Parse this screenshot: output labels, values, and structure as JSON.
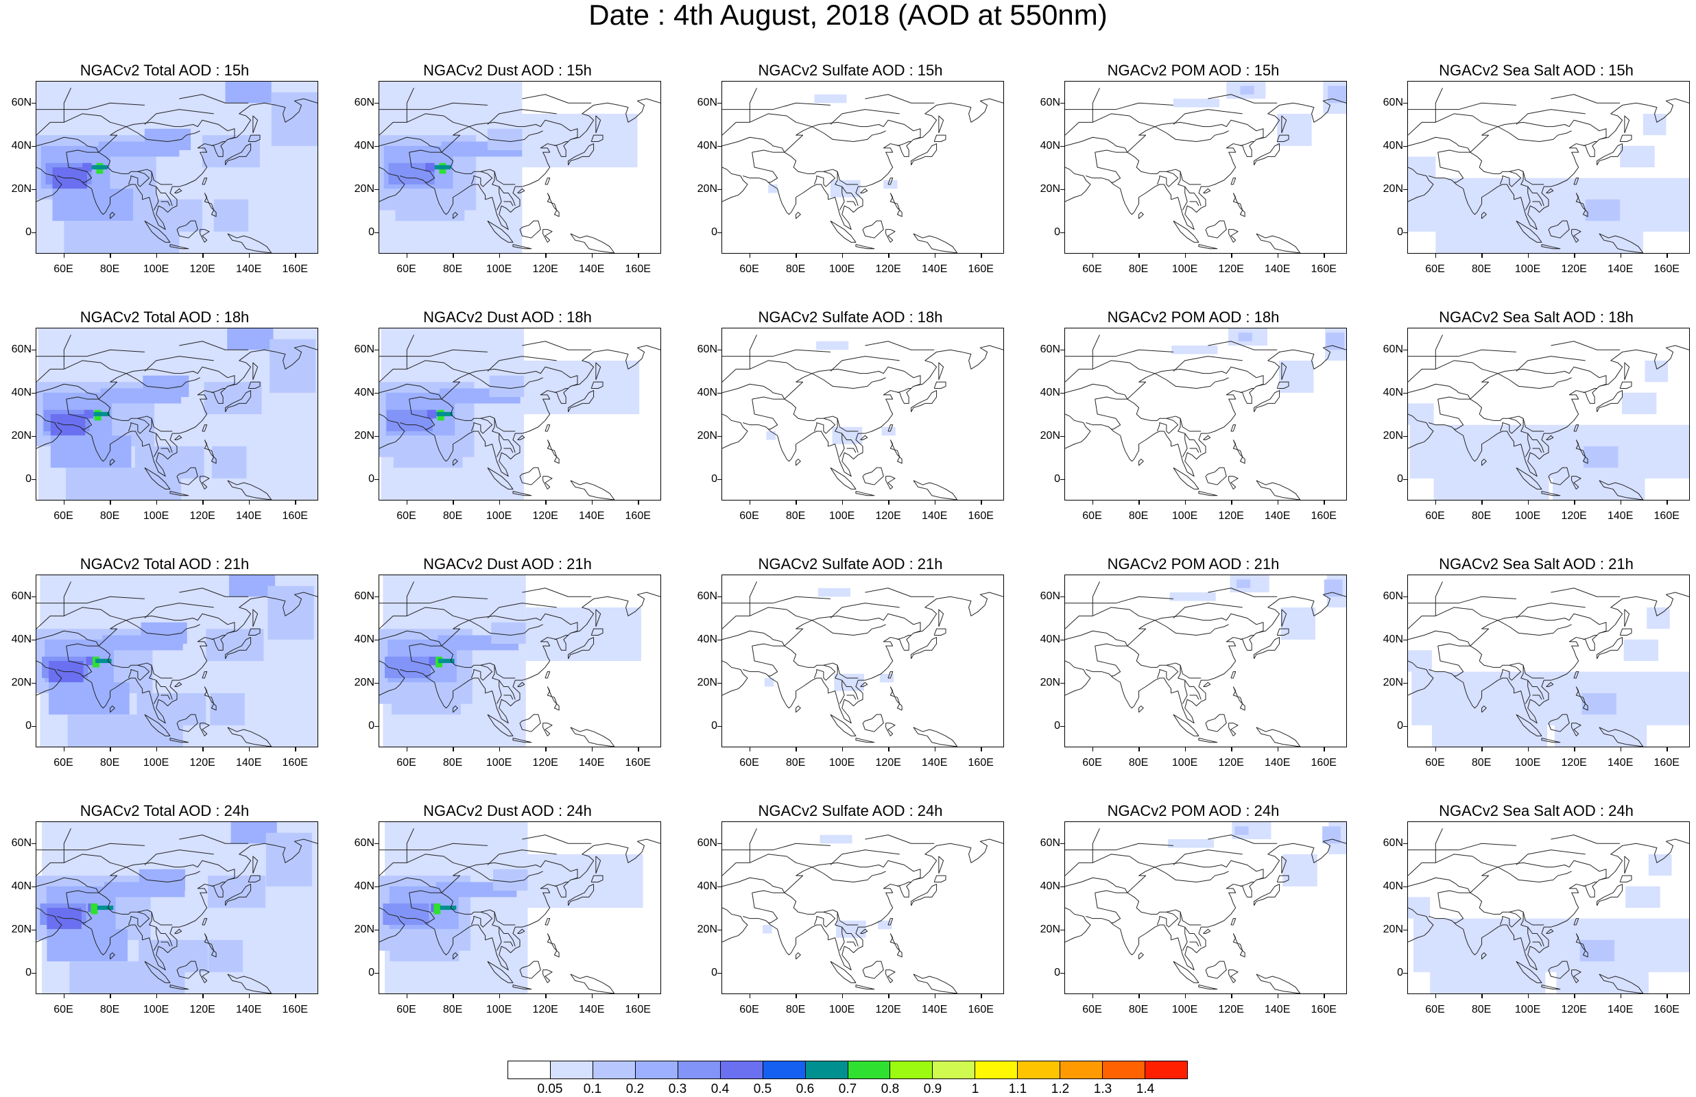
{
  "title": "Date : 4th August, 2018 (AOD at 550nm)",
  "axes": {
    "lat_ticks": [
      "60N",
      "40N",
      "20N",
      "0"
    ],
    "lat_values": [
      60,
      40,
      20,
      0
    ],
    "lon_ticks": [
      "60E",
      "80E",
      "100E",
      "120E",
      "140E",
      "160E"
    ],
    "lon_values": [
      60,
      80,
      100,
      120,
      140,
      160
    ],
    "lon_range": [
      48,
      170
    ],
    "lat_range": [
      -10,
      70
    ]
  },
  "panels": [
    {
      "title": "NGACv2 Total AOD : 15h",
      "species": "total",
      "hour": "15h"
    },
    {
      "title": "NGACv2 Dust AOD : 15h",
      "species": "dust",
      "hour": "15h"
    },
    {
      "title": "NGACv2 Sulfate AOD : 15h",
      "species": "sulfate",
      "hour": "15h"
    },
    {
      "title": "NGACv2 POM AOD : 15h",
      "species": "pom",
      "hour": "15h"
    },
    {
      "title": "NGACv2 Sea Salt AOD : 15h",
      "species": "seasalt",
      "hour": "15h"
    },
    {
      "title": "NGACv2 Total AOD : 18h",
      "species": "total",
      "hour": "18h"
    },
    {
      "title": "NGACv2 Dust AOD : 18h",
      "species": "dust",
      "hour": "18h"
    },
    {
      "title": "NGACv2 Sulfate AOD : 18h",
      "species": "sulfate",
      "hour": "18h"
    },
    {
      "title": "NGACv2 POM AOD : 18h",
      "species": "pom",
      "hour": "18h"
    },
    {
      "title": "NGACv2 Sea Salt AOD : 18h",
      "species": "seasalt",
      "hour": "18h"
    },
    {
      "title": "NGACv2 Total AOD : 21h",
      "species": "total",
      "hour": "21h"
    },
    {
      "title": "NGACv2 Dust AOD : 21h",
      "species": "dust",
      "hour": "21h"
    },
    {
      "title": "NGACv2 Sulfate AOD : 21h",
      "species": "sulfate",
      "hour": "21h"
    },
    {
      "title": "NGACv2 POM AOD : 21h",
      "species": "pom",
      "hour": "21h"
    },
    {
      "title": "NGACv2 Sea Salt AOD : 21h",
      "species": "seasalt",
      "hour": "21h"
    },
    {
      "title": "NGACv2 Total AOD : 24h",
      "species": "total",
      "hour": "24h"
    },
    {
      "title": "NGACv2 Dust AOD : 24h",
      "species": "dust",
      "hour": "24h"
    },
    {
      "title": "NGACv2 Sulfate AOD : 24h",
      "species": "sulfate",
      "hour": "24h"
    },
    {
      "title": "NGACv2 POM AOD : 24h",
      "species": "pom",
      "hour": "24h"
    },
    {
      "title": "NGACv2 Sea Salt  AOD : 24h",
      "species": "seasalt",
      "hour": "24h"
    }
  ],
  "colorbar": {
    "labels": [
      "0.05",
      "0.1",
      "0.2",
      "0.3",
      "0.4",
      "0.5",
      "0.6",
      "0.7",
      "0.8",
      "0.9",
      "1",
      "1.1",
      "1.2",
      "1.3",
      "1.4"
    ],
    "colors": [
      "#ffffff",
      "#d6e0ff",
      "#b8c8ff",
      "#9cb0ff",
      "#8294f8",
      "#6a70f0",
      "#1560f0",
      "#009090",
      "#30e030",
      "#9cfa10",
      "#d0fa50",
      "#fff800",
      "#ffc400",
      "#ff9a00",
      "#ff6200",
      "#ff2000"
    ]
  }
}
